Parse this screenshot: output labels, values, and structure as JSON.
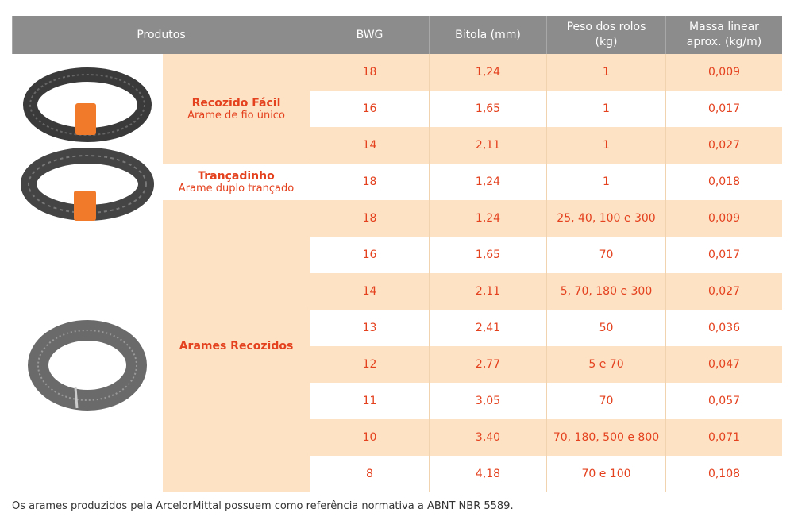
{
  "table": {
    "header": [
      "Produtos",
      "BWG",
      "Bitola (mm)",
      "Peso dos rolos (kg)",
      "Massa linear aprox. (kg/m)"
    ],
    "groups": [
      {
        "name": "Recozido Fácil",
        "subtitle": "Arame de fio único",
        "rows": [
          [
            "18",
            "1,24",
            "1",
            "0,009"
          ],
          [
            "16",
            "1,65",
            "1",
            "0,017"
          ],
          [
            "14",
            "2,11",
            "1",
            "0,027"
          ]
        ]
      },
      {
        "name": "Trançadinho",
        "subtitle": "Arame duplo trançado",
        "rows": [
          [
            "18",
            "1,24",
            "1",
            "0,018"
          ]
        ]
      },
      {
        "name": "Arames Recozidos",
        "rows": [
          [
            "18",
            "1,24",
            "25, 40, 100 e 300",
            "0,009"
          ],
          [
            "16",
            "1,65",
            "70",
            "0,017"
          ],
          [
            "14",
            "2,11",
            "5, 70, 180 e 300",
            "0,027"
          ],
          [
            "13",
            "2,41",
            "50",
            "0,036"
          ],
          [
            "12",
            "2,77",
            "5 e 70",
            "0,047"
          ],
          [
            "11",
            "3,05",
            "70",
            "0,057"
          ],
          [
            "10",
            "3,40",
            "70, 180, 500 e 800",
            "0,071"
          ],
          [
            "8",
            "4,18",
            "70 e 100",
            "0,108"
          ]
        ]
      }
    ]
  },
  "footer": "Os arames produzidos pela ArcelorMittal possuem como referência normativa a ABNT NBR 5589."
}
